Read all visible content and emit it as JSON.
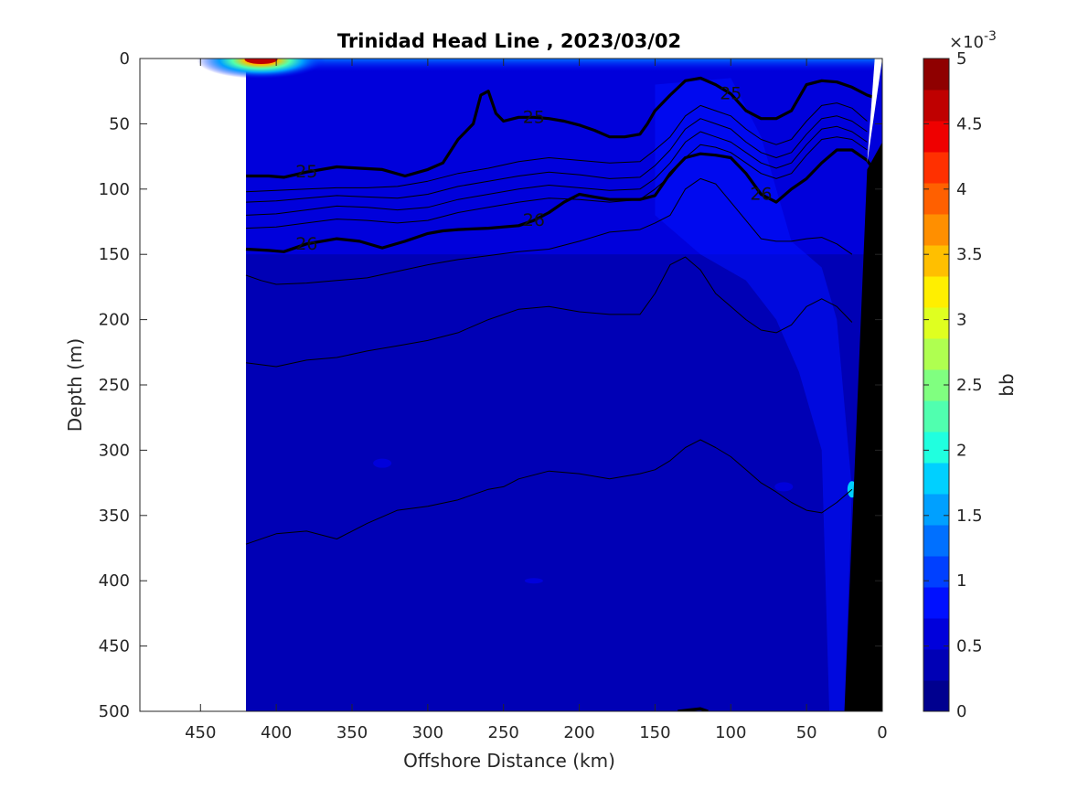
{
  "chart_data": {
    "type": "heatmap",
    "title": "Trinidad Head Line , 2023/03/02",
    "xlabel": "Offshore Distance (km)",
    "ylabel": "Depth (m)",
    "xlim": [
      490,
      0
    ],
    "ylim": [
      0,
      500
    ],
    "x_reversed": true,
    "y_reversed": true,
    "xticks": [
      450,
      400,
      350,
      300,
      250,
      200,
      150,
      100,
      50,
      0
    ],
    "yticks": [
      0,
      50,
      100,
      150,
      200,
      250,
      300,
      350,
      400,
      450,
      500
    ],
    "data_extent_km": [
      420,
      0
    ],
    "colorbar": {
      "label": "bb",
      "exponent_label": "×10",
      "exponent_power": "-3",
      "min": 0,
      "max": 5,
      "ticks": [
        0,
        0.5,
        1,
        1.5,
        2,
        2.5,
        3,
        3.5,
        4,
        4.5,
        5
      ],
      "tick_labels": [
        "0",
        "0.5",
        "1",
        "1.5",
        "2",
        "2.5",
        "3",
        "3.5",
        "4",
        "4.5",
        "5"
      ],
      "colors": [
        "#00008f",
        "#0000b5",
        "#0000db",
        "#0010ff",
        "#0040ff",
        "#0070ff",
        "#00a0ff",
        "#00d0ff",
        "#20ffdf",
        "#50ffaf",
        "#80ff80",
        "#afff50",
        "#dfff20",
        "#ffef00",
        "#ffbf00",
        "#ff8f00",
        "#ff6000",
        "#ff3000",
        "#ef0000",
        "#bf0000",
        "#8f0000"
      ]
    },
    "background_field": {
      "deep_value": 0.3,
      "mid_value": 0.5,
      "shelf_value": 0.75,
      "surface_max_value": 4.8,
      "surface_max_at_km": 410
    },
    "isopycnals": [
      {
        "label": "25",
        "bold": true,
        "x": [
          420,
          405,
          395,
          380,
          360,
          345,
          330,
          315,
          300,
          290,
          280,
          270,
          265,
          260,
          255,
          250,
          240,
          230,
          220,
          210,
          200,
          190,
          180,
          170,
          160,
          155,
          150,
          140,
          130,
          120,
          110,
          100,
          90,
          80,
          70,
          60,
          50,
          40,
          30,
          20,
          10,
          5
        ],
        "y": [
          90,
          90,
          91,
          87,
          83,
          84,
          85,
          90,
          85,
          80,
          62,
          50,
          28,
          25,
          42,
          48,
          45,
          45,
          46,
          48,
          51,
          55,
          60,
          60,
          58,
          50,
          40,
          28,
          17,
          15,
          20,
          27,
          40,
          46,
          46,
          40,
          20,
          17,
          18,
          22,
          28,
          30
        ]
      },
      {
        "label": "",
        "bold": false,
        "x": [
          420,
          400,
          380,
          360,
          340,
          320,
          300,
          280,
          260,
          240,
          220,
          200,
          180,
          160,
          150,
          140,
          130,
          120,
          110,
          100,
          90,
          80,
          70,
          60,
          50,
          40,
          30,
          20,
          10
        ],
        "y": [
          102,
          101,
          100,
          99,
          99,
          98,
          94,
          88,
          84,
          79,
          76,
          78,
          80,
          79,
          70,
          60,
          44,
          36,
          40,
          44,
          54,
          62,
          66,
          62,
          48,
          36,
          34,
          38,
          48
        ]
      },
      {
        "label": "",
        "bold": false,
        "x": [
          420,
          400,
          380,
          360,
          340,
          320,
          300,
          280,
          260,
          240,
          220,
          200,
          180,
          160,
          150,
          140,
          130,
          120,
          110,
          100,
          90,
          80,
          70,
          60,
          50,
          40,
          30,
          20,
          10
        ],
        "y": [
          110,
          109,
          107,
          105,
          106,
          107,
          104,
          98,
          94,
          90,
          87,
          89,
          92,
          91,
          82,
          70,
          54,
          46,
          50,
          54,
          64,
          72,
          76,
          72,
          58,
          46,
          44,
          48,
          56
        ]
      },
      {
        "label": "",
        "bold": false,
        "x": [
          420,
          400,
          380,
          360,
          340,
          320,
          300,
          280,
          260,
          240,
          220,
          200,
          180,
          160,
          150,
          140,
          130,
          120,
          110,
          100,
          90,
          80,
          70,
          60,
          50,
          40,
          30,
          20,
          10
        ],
        "y": [
          120,
          119,
          116,
          113,
          114,
          116,
          114,
          108,
          104,
          100,
          97,
          99,
          101,
          100,
          92,
          80,
          64,
          56,
          60,
          64,
          72,
          80,
          84,
          80,
          66,
          54,
          52,
          56,
          64
        ]
      },
      {
        "label": "",
        "bold": false,
        "x": [
          420,
          400,
          380,
          360,
          340,
          320,
          300,
          280,
          260,
          240,
          220,
          200,
          180,
          160,
          150,
          140,
          130,
          120,
          110,
          100,
          90,
          80,
          70,
          60,
          50,
          40,
          30,
          20,
          10
        ],
        "y": [
          130,
          129,
          126,
          123,
          124,
          126,
          124,
          118,
          114,
          110,
          107,
          108,
          110,
          108,
          100,
          90,
          76,
          66,
          68,
          72,
          80,
          88,
          92,
          88,
          74,
          62,
          60,
          62,
          70
        ]
      },
      {
        "label": "26",
        "bold": true,
        "x": [
          420,
          405,
          395,
          380,
          360,
          345,
          330,
          315,
          300,
          290,
          280,
          260,
          250,
          240,
          230,
          220,
          210,
          200,
          190,
          180,
          170,
          160,
          150,
          140,
          130,
          120,
          110,
          100,
          90,
          80,
          70,
          60,
          50,
          40,
          30,
          20,
          10,
          5
        ],
        "y": [
          146,
          147,
          148,
          142,
          138,
          140,
          145,
          140,
          134,
          132,
          131,
          130,
          129,
          128,
          124,
          118,
          110,
          104,
          106,
          108,
          108,
          108,
          105,
          88,
          76,
          73,
          74,
          76,
          88,
          104,
          110,
          100,
          92,
          80,
          70,
          70,
          78,
          86
        ]
      },
      {
        "label": "",
        "bold": false,
        "x": [
          420,
          410,
          400,
          380,
          360,
          340,
          320,
          300,
          280,
          260,
          240,
          220,
          200,
          180,
          160,
          150,
          140,
          130,
          120,
          110,
          100,
          90,
          80,
          70,
          60,
          50,
          40,
          30,
          20
        ],
        "y": [
          166,
          170,
          173,
          172,
          170,
          168,
          163,
          158,
          154,
          151,
          148,
          146,
          140,
          133,
          131,
          126,
          120,
          100,
          92,
          96,
          110,
          124,
          138,
          140,
          140,
          138,
          137,
          142,
          150
        ]
      },
      {
        "label": "",
        "bold": false,
        "x": [
          420,
          400,
          380,
          360,
          340,
          320,
          300,
          280,
          260,
          240,
          220,
          200,
          180,
          160,
          150,
          140,
          130,
          120,
          110,
          100,
          90,
          80,
          70,
          60,
          50,
          40,
          30,
          20
        ],
        "y": [
          233,
          236,
          231,
          229,
          224,
          220,
          216,
          210,
          200,
          192,
          190,
          194,
          196,
          196,
          180,
          158,
          152,
          162,
          180,
          190,
          200,
          208,
          210,
          204,
          190,
          184,
          190,
          202
        ]
      },
      {
        "label": "",
        "bold": false,
        "x": [
          420,
          400,
          380,
          360,
          340,
          320,
          300,
          280,
          260,
          250,
          240,
          220,
          200,
          180,
          160,
          150,
          140,
          130,
          120,
          110,
          100,
          90,
          80,
          70,
          60,
          50,
          40,
          30,
          20
        ],
        "y": [
          372,
          364,
          362,
          368,
          356,
          346,
          343,
          338,
          330,
          328,
          322,
          316,
          318,
          322,
          318,
          315,
          308,
          298,
          292,
          298,
          305,
          315,
          325,
          332,
          340,
          346,
          348,
          340,
          330
        ]
      },
      {
        "label": "",
        "bold": true,
        "x": [
          135,
          128,
          120,
          115
        ],
        "y": [
          500,
          499,
          498,
          500
        ]
      }
    ],
    "bathymetry_km": [
      [
        420,
        500
      ],
      [
        25,
        500
      ],
      [
        5,
        85
      ],
      [
        0,
        80
      ],
      [
        0,
        500
      ]
    ],
    "topo_wedge_top_km": [
      [
        10,
        80
      ],
      [
        5,
        0
      ],
      [
        0,
        0
      ]
    ]
  }
}
